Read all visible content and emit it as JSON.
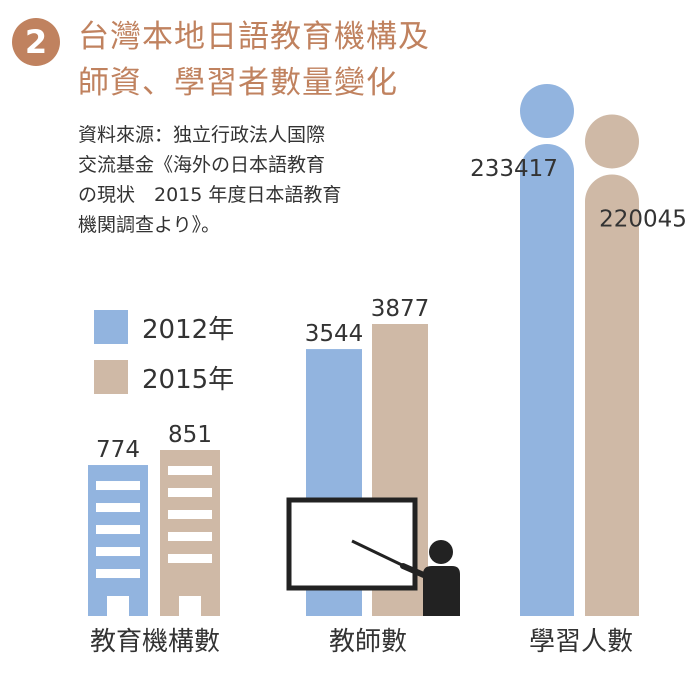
{
  "badge": "2",
  "title_lines": [
    "台灣本地日語教育機構及",
    "師資、學習者數量變化"
  ],
  "source_lines": [
    "資料來源：独立行政法人国際",
    "交流基金《海外の日本語教育",
    "の現状　2015 年度日本語教育",
    "機関調查より》。"
  ],
  "colors": {
    "accent": "#c0825f",
    "series_2012": "#92b4df",
    "series_2015": "#cfb9a6"
  },
  "chart_data": {
    "type": "bar",
    "title": "台灣本地日語教育機構及師資、學習者數量變化",
    "categories": [
      "教育機構數",
      "教師數",
      "學習人數"
    ],
    "series": [
      {
        "name": "2012年",
        "values": [
          774,
          3544,
          233417
        ]
      },
      {
        "name": "2015年",
        "values": [
          851,
          3877,
          220045
        ]
      }
    ],
    "value_labels": [
      [
        "774",
        "3544",
        "233417"
      ],
      [
        "851",
        "3877",
        "220045"
      ]
    ],
    "legend_position": "left",
    "grid": false,
    "icons": [
      "building-icon",
      "teacher-blackboard-icon",
      "person-icon"
    ]
  }
}
